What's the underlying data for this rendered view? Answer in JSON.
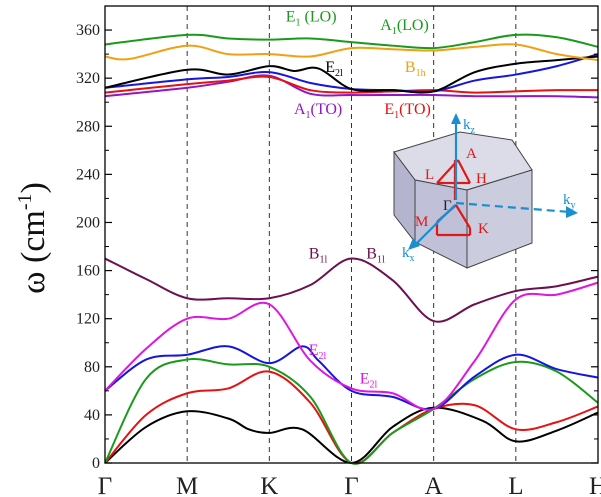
{
  "chart_data": {
    "type": "line",
    "title": "",
    "xlabel": "",
    "ylabel": "ω (cm⁻¹)",
    "ylabel_parts": {
      "symbol": "ω",
      "open": " (cm",
      "sup": "-1",
      "close": ")"
    },
    "ylim": [
      0,
      380
    ],
    "yticks": [
      0,
      40,
      80,
      120,
      160,
      200,
      240,
      280,
      320,
      360
    ],
    "grid": false,
    "legend": "none",
    "x_points": [
      "Γ",
      "M",
      "K",
      "Γ",
      "A",
      "L",
      "H"
    ],
    "x_points_positions": [
      0,
      1,
      2,
      3,
      4,
      5,
      6
    ],
    "vertical_lines_at": [
      1,
      2,
      3,
      4,
      5
    ],
    "series": [
      {
        "color": "#000000",
        "x": [
          0,
          0.5,
          1,
          1.5,
          1.75,
          2,
          2.4,
          3,
          3.5,
          4,
          4.6,
          5,
          5.5,
          6
        ],
        "y": [
          0,
          30,
          43,
          37,
          28,
          25,
          28,
          0,
          30,
          46,
          35,
          18,
          27,
          42
        ]
      },
      {
        "color": "#e81010",
        "x": [
          0,
          0.5,
          1,
          1.5,
          2,
          2.5,
          3,
          3.5,
          4,
          4.5,
          5,
          5.5,
          6
        ],
        "y": [
          0,
          40,
          58,
          62,
          76,
          50,
          0,
          25,
          45,
          48,
          28,
          34,
          47
        ]
      },
      {
        "color": "#1a9a1a",
        "x": [
          0,
          0.5,
          1,
          1.5,
          2,
          2.5,
          3,
          3.5,
          4,
          4.5,
          5,
          5.5,
          6
        ],
        "y": [
          0,
          70,
          86,
          82,
          80,
          55,
          0,
          25,
          45,
          70,
          84,
          76,
          50
        ]
      },
      {
        "color": "#1515e0",
        "x": [
          0,
          0.5,
          1,
          1.5,
          2,
          2.4,
          2.6,
          3,
          3.5,
          4,
          4.5,
          5,
          5.5,
          6
        ],
        "y": [
          60,
          86,
          90,
          97,
          83,
          97,
          85,
          60,
          55,
          45,
          72,
          90,
          78,
          71
        ]
      },
      {
        "color": "#e016e0",
        "x": [
          0,
          0.5,
          1,
          1.5,
          2,
          2.5,
          3,
          3.5,
          4,
          4.5,
          5,
          5.5,
          6
        ],
        "y": [
          60,
          95,
          120,
          120,
          132,
          85,
          62,
          58,
          45,
          85,
          136,
          140,
          150
        ]
      },
      {
        "color": "#6b1050",
        "x": [
          0,
          0.5,
          1,
          1.5,
          2,
          2.5,
          3,
          3.5,
          4,
          4.5,
          5,
          5.5,
          6
        ],
        "y": [
          170,
          153,
          137,
          137,
          137,
          148,
          170,
          152,
          118,
          132,
          143,
          147,
          155
        ]
      },
      {
        "color": "#8e18c8",
        "x": [
          0,
          1,
          1.5,
          2,
          2.5,
          3,
          3.5,
          4,
          4.5,
          5,
          5.5,
          6
        ],
        "y": [
          305,
          312,
          317,
          322,
          307,
          306,
          306,
          306,
          305,
          305,
          305,
          304
        ]
      },
      {
        "color": "#e81010",
        "x": [
          0,
          1,
          1.5,
          2,
          2.5,
          3,
          3.5,
          4,
          4.5,
          5,
          5.5,
          6
        ],
        "y": [
          308,
          315,
          318,
          321,
          310,
          308,
          309,
          310,
          308,
          309,
          310,
          310
        ]
      },
      {
        "color": "#1515e0",
        "x": [
          0,
          1,
          1.5,
          2,
          2.5,
          3,
          3.5,
          4,
          4.5,
          5,
          5.5,
          6
        ],
        "y": [
          312,
          319,
          321,
          325,
          316,
          311,
          310,
          309,
          318,
          323,
          330,
          340
        ]
      },
      {
        "color": "#000000",
        "x": [
          0,
          1,
          1.5,
          2,
          2.3,
          2.6,
          3,
          3.5,
          4,
          4.5,
          5,
          5.5,
          6
        ],
        "y": [
          312,
          327,
          323,
          330,
          326,
          328,
          311,
          310,
          309,
          325,
          332,
          335,
          338
        ]
      },
      {
        "color": "#f0a010",
        "x": [
          0,
          0.3,
          1,
          1.5,
          2,
          2.5,
          3,
          3.5,
          4,
          4.5,
          5,
          5.5,
          6
        ],
        "y": [
          338,
          336,
          347,
          340,
          340,
          338,
          345,
          344,
          343,
          346,
          348,
          340,
          335
        ]
      },
      {
        "color": "#1a9a1a",
        "x": [
          0,
          1,
          1.5,
          2,
          2.5,
          3,
          3.5,
          4,
          4.5,
          5,
          5.5,
          6
        ],
        "y": [
          348,
          356,
          353,
          352,
          353,
          350,
          347,
          345,
          350,
          356,
          354,
          346
        ]
      }
    ],
    "annotations": [
      {
        "base": "E",
        "sub": "1",
        "rest": " (LO)",
        "color": "#1a9a1a",
        "x": 2.2,
        "y": 367
      },
      {
        "base": "A",
        "sub": "1",
        "rest": "(LO)",
        "color": "#1a9a1a",
        "x": 3.35,
        "y": 360
      },
      {
        "base": "E",
        "sub": "2l",
        "rest": "",
        "color": "#000000",
        "x": 2.68,
        "y": 325
      },
      {
        "base": "B",
        "sub": "1h",
        "rest": "",
        "color": "#f0a010",
        "x": 3.65,
        "y": 325
      },
      {
        "base": "A",
        "sub": "1",
        "rest": "(TO)",
        "color": "#8e18c8",
        "x": 2.3,
        "y": 290
      },
      {
        "base": "E",
        "sub": "1",
        "rest": "(TO)",
        "color": "#e81010",
        "x": 3.4,
        "y": 290
      },
      {
        "base": "B",
        "sub": "1l",
        "rest": "",
        "color": "#6b1050",
        "x": 2.48,
        "y": 170
      },
      {
        "base": "B",
        "sub": "1l",
        "rest": "",
        "color": "#6b1050",
        "x": 3.18,
        "y": 170
      },
      {
        "base": "E",
        "sub": "2l",
        "rest": "",
        "color": "#e016e0",
        "x": 2.48,
        "y": 90
      },
      {
        "base": "E",
        "sub": "2l",
        "rest": "",
        "color": "#e016e0",
        "x": 3.1,
        "y": 66
      }
    ],
    "inset": {
      "description_labels": [
        "A",
        "L",
        "H",
        "Γ",
        "M",
        "K"
      ],
      "axes": [
        {
          "base": "k",
          "sub": "z"
        },
        {
          "base": "k",
          "sub": "y"
        },
        {
          "base": "k",
          "sub": "x"
        }
      ]
    }
  }
}
